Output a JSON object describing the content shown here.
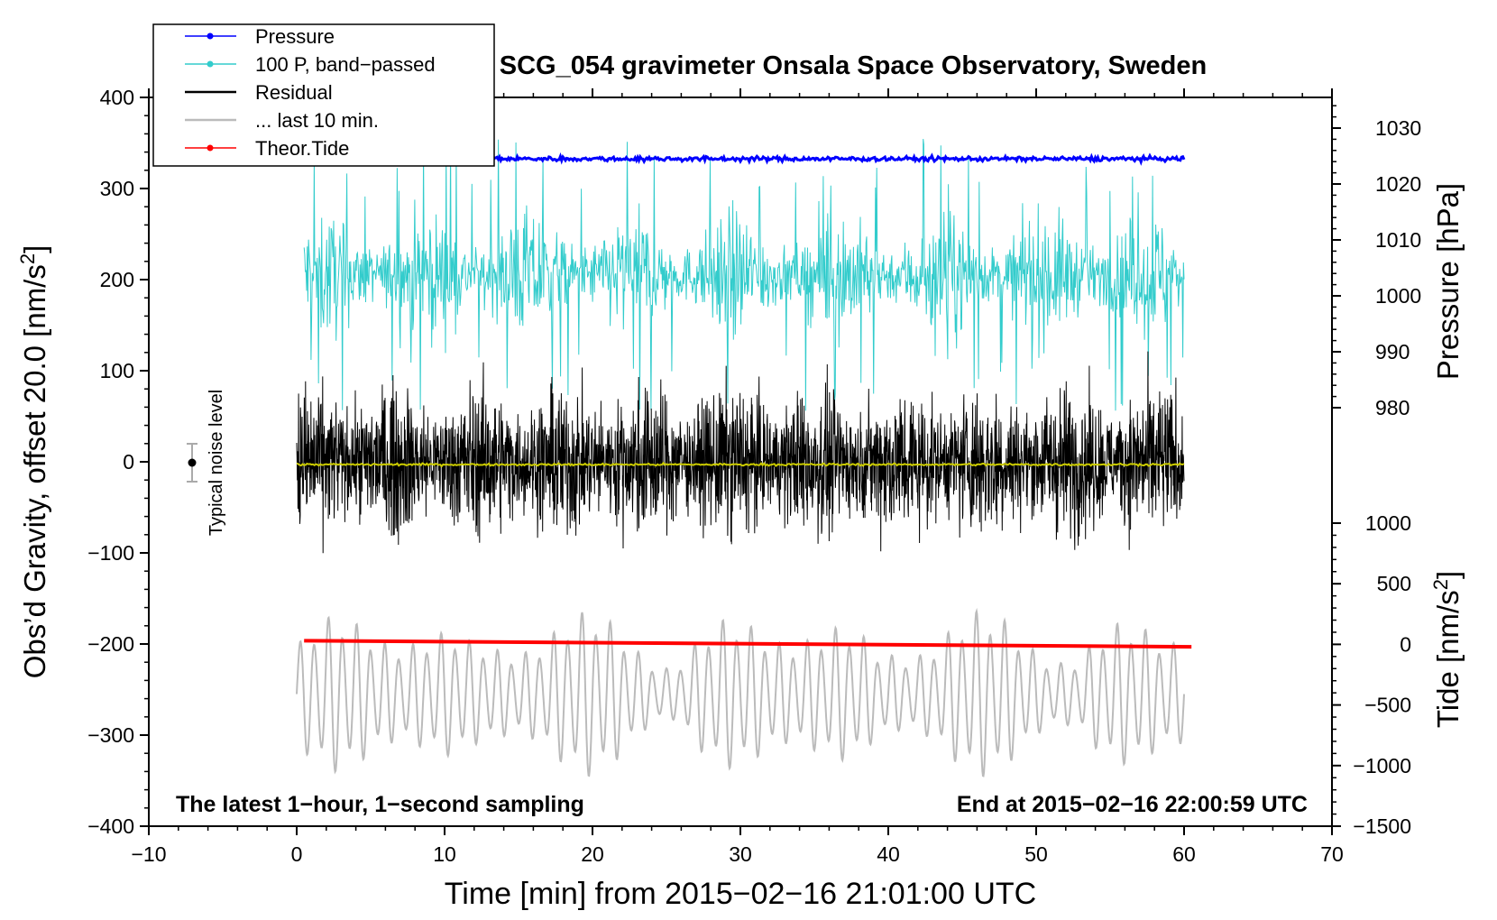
{
  "chart_data": {
    "type": "line",
    "title": "SCG_054 gravimeter Onsala Space Observatory, Sweden",
    "xlabel": "Time [min] from 2015−02−16 21:01:00 UTC",
    "ylabel_left": "Obs’d Gravity, offset 20.0 [nm/s",
    "ylabel_left_sup": "2",
    "ylabel_left_tail": "]",
    "ylabel_right_pressure": "Pressure [hPa]",
    "ylabel_right_tide": "Tide [nm/s",
    "ylabel_right_tide_sup": "2",
    "ylabel_right_tide_tail": "]",
    "xlim": [
      -10,
      70
    ],
    "ylim_left": [
      -400,
      400
    ],
    "x_ticks": [
      -10,
      0,
      10,
      20,
      30,
      40,
      50,
      60,
      70
    ],
    "x_tick_labels": [
      "−10",
      "0",
      "10",
      "20",
      "30",
      "40",
      "50",
      "60",
      "70"
    ],
    "y_ticks_left": [
      400,
      300,
      200,
      100,
      0,
      -100,
      -200,
      -300,
      -400
    ],
    "y_tick_labels_left": [
      "400",
      "300",
      "200",
      "100",
      "0",
      "−100",
      "−200",
      "−300",
      "−400"
    ],
    "pressure_ticks": [
      1030,
      1020,
      1010,
      1000,
      990,
      980
    ],
    "pressure_tick_labels": [
      "1030",
      "1020",
      "1010",
      "1000",
      "990",
      "980"
    ],
    "tide_ticks": [
      1000,
      500,
      0,
      -500,
      -1000,
      -1500
    ],
    "tide_tick_labels": [
      "1000",
      "500",
      "0",
      "−500",
      "−1000",
      "−1500"
    ],
    "legend": {
      "position": "top-left",
      "entries": [
        {
          "label": "Pressure",
          "color": "#0000ff",
          "marker": true
        },
        {
          "label": "100 P, band−passed",
          "color": "#33cccc",
          "marker": true
        },
        {
          "label": "Residual",
          "color": "#000000",
          "marker": false
        },
        {
          "label": "... last 10 min.",
          "color": "#bbbbbb",
          "marker": false
        },
        {
          "label": "Theor.Tide",
          "color": "#ff0000",
          "marker": true
        }
      ]
    },
    "series": [
      {
        "name": "Pressure",
        "unit": "hPa",
        "x_range": [
          0,
          60
        ],
        "level": 1024.5,
        "noise": 0.4,
        "color": "#0000ff"
      },
      {
        "name": "100 P, band−passed",
        "unit": "nm/s2 (left axis)",
        "x_range": [
          0.5,
          60
        ],
        "center": 205,
        "amplitude": 65,
        "color": "#33cccc"
      },
      {
        "name": "Residual",
        "unit": "nm/s2 (left axis)",
        "x_range": [
          0,
          60
        ],
        "center": 0,
        "amplitude": 80,
        "color": "#000000"
      },
      {
        "name": "Residual (smoothed)",
        "unit": "nm/s2 (left axis)",
        "x_range": [
          0,
          60
        ],
        "center": -3,
        "amplitude": 2,
        "color": "#cccc00"
      },
      {
        "name": "... last 10 min.",
        "unit": "nm/s2 (left axis)",
        "x_range": [
          0,
          60
        ],
        "center": -255,
        "amplitude": 70,
        "color": "#bbbbbb"
      },
      {
        "name": "Theor.Tide",
        "unit": "nm/s2 (tide axis)",
        "x": [
          0.5,
          60.5
        ],
        "y": [
          30,
          -20
        ],
        "color": "#ff0000"
      }
    ],
    "noise_level": {
      "label": "Typical noise level",
      "x": -7,
      "y": 0,
      "error": 20
    },
    "annotations": {
      "left": "The latest 1−hour, 1−second sampling",
      "right": "End at 2015−02−16 22:00:59 UTC"
    }
  }
}
